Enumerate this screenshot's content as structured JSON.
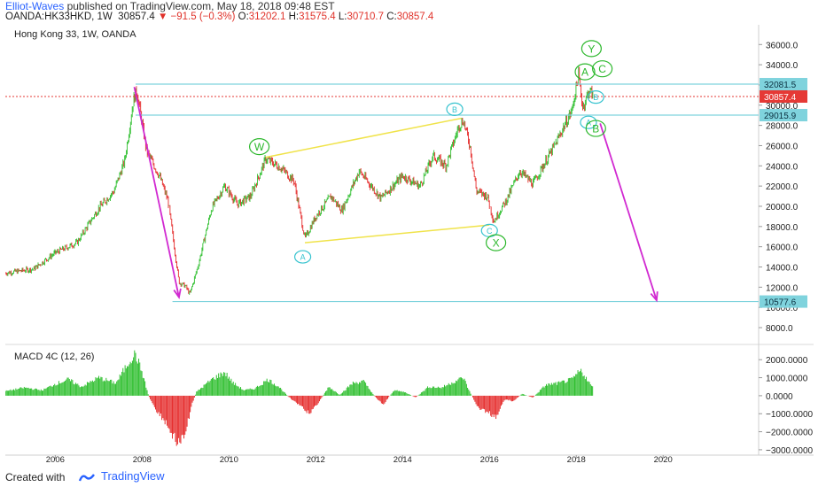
{
  "header": {
    "author": "Elliot-Waves",
    "published": " published on TradingView.com, May 18, 2018 09:48 EST",
    "symbol": "OANDA:HK33HKD, 1W",
    "last": "30857.4",
    "change": "−91.5 (−0.3%)",
    "open_label": "O:",
    "open": "31202.1",
    "high_label": "H:",
    "high": "31575.4",
    "low_label": "L:",
    "low": "30710.7",
    "close_label": "C:",
    "close": "30857.4"
  },
  "footer": {
    "created_with": "Created with",
    "brand": "TradingView"
  },
  "colors": {
    "bull": "#2fbf2f",
    "bear": "#e52b2b",
    "arrow": "#d12ad1",
    "channel": "#f0e34a",
    "level": "#7fd3dd",
    "label_circle": "#37c3cf",
    "label_green": "#2db82d",
    "price_red": "#e53935"
  },
  "chart_data": [
    {
      "type": "candlestick",
      "title": "Hong Kong 33, 1W, OANDA",
      "x_ticks": [
        "2006",
        "2008",
        "2010",
        "2012",
        "2014",
        "2016",
        "2018",
        "2020"
      ],
      "x_range": [
        2004.85,
        2022.2
      ],
      "y_ticks": [
        "8000.0",
        "10000.0",
        "12000.0",
        "14000.0",
        "16000.0",
        "18000.0",
        "20000.0",
        "22000.0",
        "24000.0",
        "26000.0",
        "28000.0",
        "30000.0",
        "32000.0",
        "34000.0",
        "36000.0"
      ],
      "y_range": [
        6600,
        37600
      ],
      "price_path": [
        [
          2004.85,
          13400
        ],
        [
          2005.5,
          13800
        ],
        [
          2006.0,
          15400
        ],
        [
          2006.5,
          16400
        ],
        [
          2007.0,
          19800
        ],
        [
          2007.35,
          21500
        ],
        [
          2007.6,
          24500
        ],
        [
          2007.8,
          30500
        ],
        [
          2007.88,
          31500
        ],
        [
          2008.1,
          25500
        ],
        [
          2008.4,
          23000
        ],
        [
          2008.6,
          20500
        ],
        [
          2008.85,
          12500
        ],
        [
          2009.0,
          12100
        ],
        [
          2009.1,
          11300
        ],
        [
          2009.3,
          14300
        ],
        [
          2009.6,
          19800
        ],
        [
          2009.9,
          22000
        ],
        [
          2010.2,
          20200
        ],
        [
          2010.5,
          21000
        ],
        [
          2010.85,
          24700
        ],
        [
          2011.2,
          23800
        ],
        [
          2011.5,
          22500
        ],
        [
          2011.75,
          16800
        ],
        [
          2012.0,
          19000
        ],
        [
          2012.35,
          21000
        ],
        [
          2012.6,
          19600
        ],
        [
          2013.0,
          23500
        ],
        [
          2013.5,
          20800
        ],
        [
          2014.0,
          23000
        ],
        [
          2014.4,
          22000
        ],
        [
          2014.7,
          25000
        ],
        [
          2015.0,
          24000
        ],
        [
          2015.3,
          28000
        ],
        [
          2015.4,
          28500
        ],
        [
          2015.55,
          26000
        ],
        [
          2015.7,
          21500
        ],
        [
          2015.95,
          21000
        ],
        [
          2016.1,
          18500
        ],
        [
          2016.4,
          20700
        ],
        [
          2016.7,
          23500
        ],
        [
          2017.0,
          22200
        ],
        [
          2017.5,
          26000
        ],
        [
          2017.9,
          29500
        ],
        [
          2018.05,
          33000
        ],
        [
          2018.15,
          29800
        ],
        [
          2018.3,
          31500
        ],
        [
          2018.4,
          30857
        ]
      ],
      "last_price": 30857.4,
      "levels": [
        {
          "value": 32081.5,
          "label": "32081.5"
        },
        {
          "value": 29015.9,
          "label": "29015.9"
        },
        {
          "value": 10577.6,
          "label": "10577.6"
        }
      ],
      "current_price_label": "30857.4",
      "channel": {
        "upper": [
          [
            2010.85,
            24850
          ],
          [
            2015.35,
            28700
          ]
        ],
        "lower": [
          [
            2011.75,
            16400
          ],
          [
            2016.0,
            18150
          ]
        ]
      },
      "arrows": [
        {
          "from": [
            2007.82,
            31800
          ],
          "to": [
            2008.85,
            11000
          ]
        },
        {
          "from": [
            2018.55,
            28200
          ],
          "to": [
            2019.85,
            10700
          ]
        }
      ],
      "wave_labels": [
        {
          "text": "W",
          "x": 2010.7,
          "y": 25900,
          "style": "green"
        },
        {
          "text": "A",
          "x": 2011.7,
          "y": 15000,
          "style": "cyan"
        },
        {
          "text": "B",
          "x": 2015.2,
          "y": 29600,
          "style": "cyan"
        },
        {
          "text": "C",
          "x": 2016.0,
          "y": 17600,
          "style": "cyan"
        },
        {
          "text": "X",
          "x": 2016.15,
          "y": 16400,
          "style": "green"
        },
        {
          "text": "Y",
          "x": 2018.35,
          "y": 35600,
          "style": "green"
        },
        {
          "text": "A",
          "x": 2018.2,
          "y": 33300,
          "style": "green"
        },
        {
          "text": "C",
          "x": 2018.6,
          "y": 33600,
          "style": "green"
        },
        {
          "text": "B",
          "x": 2018.45,
          "y": 30800,
          "style": "cyan"
        },
        {
          "text": "A",
          "x": 2018.28,
          "y": 28300,
          "style": "cyan"
        },
        {
          "text": "B",
          "x": 2018.45,
          "y": 27700,
          "style": "green"
        }
      ]
    },
    {
      "type": "histogram",
      "title": "MACD 4C (12, 26)",
      "y_ticks": [
        "2000.0000",
        "1000.0000",
        "0.0000",
        "−1000.0000",
        "−2000.0000",
        "−3000.0000"
      ],
      "y_range": [
        -3200,
        2600
      ],
      "macd_path": [
        [
          2004.85,
          250
        ],
        [
          2005.3,
          450
        ],
        [
          2005.7,
          300
        ],
        [
          2006.0,
          650
        ],
        [
          2006.3,
          900
        ],
        [
          2006.6,
          500
        ],
        [
          2007.0,
          1000
        ],
        [
          2007.4,
          700
        ],
        [
          2007.75,
          2100
        ],
        [
          2007.85,
          2300
        ],
        [
          2008.0,
          1300
        ],
        [
          2008.15,
          0
        ],
        [
          2008.3,
          -700
        ],
        [
          2008.55,
          -1500
        ],
        [
          2008.8,
          -2600
        ],
        [
          2008.95,
          -2500
        ],
        [
          2009.15,
          -500
        ],
        [
          2009.25,
          200
        ],
        [
          2009.6,
          900
        ],
        [
          2009.9,
          1300
        ],
        [
          2010.1,
          700
        ],
        [
          2010.35,
          300
        ],
        [
          2010.6,
          400
        ],
        [
          2010.9,
          900
        ],
        [
          2011.15,
          500
        ],
        [
          2011.35,
          0
        ],
        [
          2011.6,
          -500
        ],
        [
          2011.85,
          -1000
        ],
        [
          2012.1,
          -250
        ],
        [
          2012.3,
          500
        ],
        [
          2012.55,
          50
        ],
        [
          2012.85,
          700
        ],
        [
          2013.1,
          800
        ],
        [
          2013.35,
          0
        ],
        [
          2013.55,
          -500
        ],
        [
          2013.8,
          300
        ],
        [
          2014.05,
          200
        ],
        [
          2014.3,
          -100
        ],
        [
          2014.6,
          500
        ],
        [
          2014.9,
          450
        ],
        [
          2015.2,
          800
        ],
        [
          2015.4,
          1000
        ],
        [
          2015.55,
          200
        ],
        [
          2015.75,
          -700
        ],
        [
          2015.95,
          -900
        ],
        [
          2016.15,
          -1200
        ],
        [
          2016.35,
          -200
        ],
        [
          2016.55,
          -300
        ],
        [
          2016.75,
          100
        ],
        [
          2017.0,
          -100
        ],
        [
          2017.3,
          600
        ],
        [
          2017.6,
          700
        ],
        [
          2017.9,
          900
        ],
        [
          2018.1,
          1400
        ],
        [
          2018.2,
          1100
        ],
        [
          2018.3,
          700
        ],
        [
          2018.4,
          400
        ]
      ]
    }
  ]
}
